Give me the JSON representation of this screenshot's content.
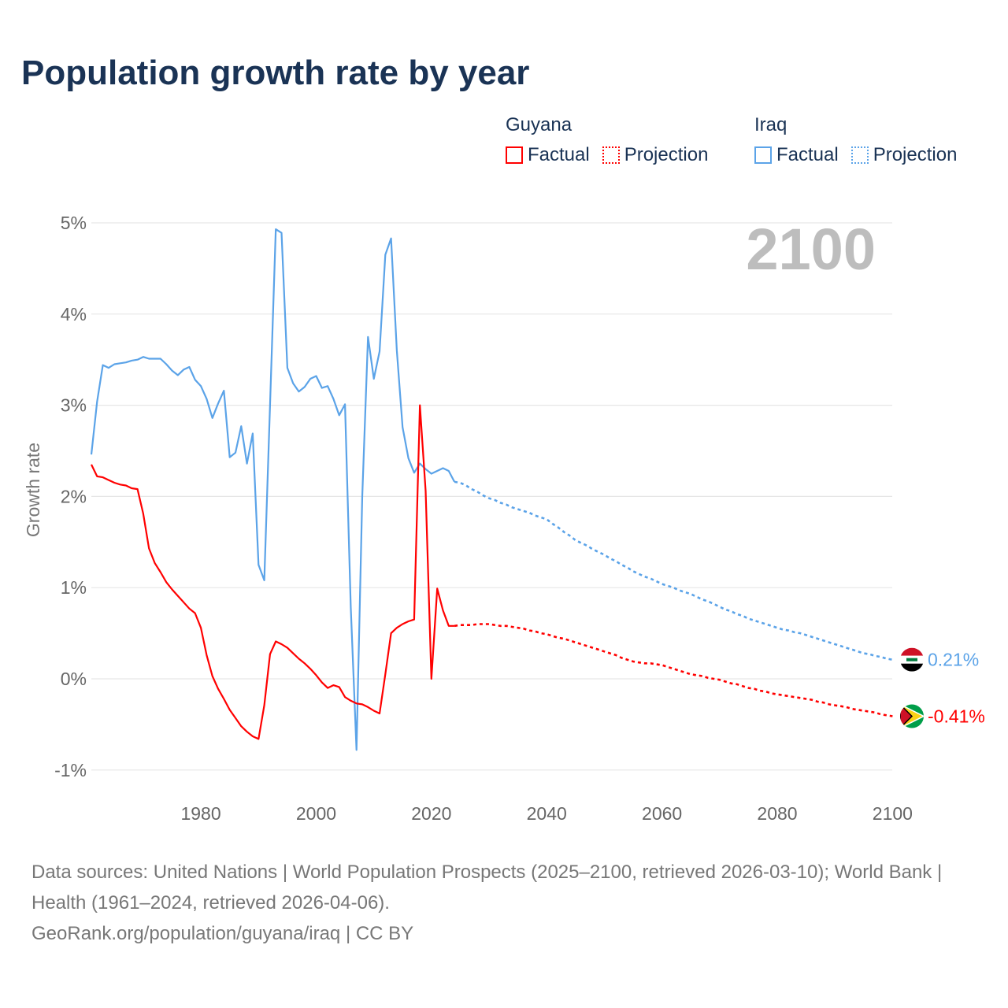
{
  "title": "Population growth rate by year",
  "legend": {
    "groups": [
      {
        "name": "Guyana",
        "factual": "Factual",
        "projection": "Projection",
        "color": "#ff0000"
      },
      {
        "name": "Iraq",
        "factual": "Factual",
        "projection": "Projection",
        "color": "#5ba3e8"
      }
    ]
  },
  "year_label": "2100",
  "footer": {
    "sources": "Data sources: United Nations | World Population Prospects (2025–2100, retrieved 2026-03-10); World Bank | Health (1961–2024, retrieved 2026-04-06).",
    "credit": "GeoRank.org/population/guyana/iraq | CC BY"
  },
  "chart_data": {
    "type": "line",
    "title": "Population growth rate by year",
    "xlabel": "",
    "ylabel": "Growth rate",
    "xlim": [
      1961,
      2100
    ],
    "ylim": [
      -1.2,
      5.1
    ],
    "x_ticks": [
      1980,
      2000,
      2020,
      2040,
      2060,
      2080,
      2100
    ],
    "x_tick_labels": [
      "1980",
      "2000",
      "2020",
      "2040",
      "2060",
      "2080",
      "2100"
    ],
    "y_ticks": [
      -1,
      0,
      1,
      2,
      3,
      4,
      5
    ],
    "y_tick_labels": [
      "-1%",
      "0%",
      "1%",
      "2%",
      "3%",
      "4%",
      "5%"
    ],
    "grid": true,
    "legend_position": "top-right",
    "series": [
      {
        "name": "Iraq",
        "color": "#5ba3e8",
        "end_label": "0.21%",
        "factual_start": 1961,
        "factual": [
          2.46,
          3.04,
          3.44,
          3.41,
          3.45,
          3.46,
          3.47,
          3.49,
          3.5,
          3.53,
          3.51,
          3.51,
          3.51,
          3.45,
          3.38,
          3.33,
          3.39,
          3.42,
          3.28,
          3.21,
          3.07,
          2.86,
          3.02,
          3.16,
          2.43,
          2.48,
          2.77,
          2.36,
          2.69,
          1.25,
          1.08,
          3.0,
          4.93,
          4.89,
          3.41,
          3.24,
          3.15,
          3.2,
          3.29,
          3.32,
          3.19,
          3.21,
          3.07,
          2.89,
          3.01,
          0.79,
          -0.78,
          2.0,
          3.75,
          3.29,
          3.59,
          4.65,
          4.83,
          3.6,
          2.76,
          2.42,
          2.26,
          2.36,
          2.3,
          2.25,
          2.28,
          2.31,
          2.28,
          2.16
        ],
        "projection_start": 2025,
        "projection": [
          2.15,
          2.12,
          2.08,
          2.05,
          2.01,
          1.98,
          1.96,
          1.93,
          1.91,
          1.88,
          1.86,
          1.84,
          1.82,
          1.79,
          1.77,
          1.75,
          1.7,
          1.66,
          1.61,
          1.57,
          1.52,
          1.49,
          1.46,
          1.42,
          1.39,
          1.36,
          1.32,
          1.29,
          1.25,
          1.22,
          1.18,
          1.15,
          1.12,
          1.1,
          1.07,
          1.04,
          1.02,
          1.0,
          0.97,
          0.95,
          0.93,
          0.9,
          0.87,
          0.85,
          0.82,
          0.79,
          0.76,
          0.74,
          0.71,
          0.69,
          0.66,
          0.64,
          0.62,
          0.6,
          0.58,
          0.56,
          0.54,
          0.53,
          0.51,
          0.5,
          0.48,
          0.46,
          0.44,
          0.42,
          0.4,
          0.38,
          0.36,
          0.34,
          0.32,
          0.3,
          0.28,
          0.27,
          0.25,
          0.24,
          0.22,
          0.21
        ]
      },
      {
        "name": "Guyana",
        "color": "#ff0000",
        "end_label": "-0.41%",
        "factual_start": 1961,
        "factual": [
          2.35,
          2.22,
          2.21,
          2.18,
          2.15,
          2.13,
          2.12,
          2.09,
          2.08,
          1.81,
          1.43,
          1.27,
          1.17,
          1.06,
          0.98,
          0.91,
          0.84,
          0.77,
          0.72,
          0.56,
          0.26,
          0.03,
          -0.11,
          -0.22,
          -0.34,
          -0.43,
          -0.52,
          -0.58,
          -0.63,
          -0.66,
          -0.29,
          0.27,
          0.41,
          0.38,
          0.34,
          0.28,
          0.22,
          0.17,
          0.11,
          0.04,
          -0.04,
          -0.1,
          -0.07,
          -0.09,
          -0.2,
          -0.24,
          -0.27,
          -0.28,
          -0.31,
          -0.35,
          -0.38,
          0.05,
          0.5,
          0.56,
          0.6,
          0.63,
          0.65,
          3.0,
          2.06,
          0.0,
          0.99,
          0.75,
          0.58,
          0.58
        ],
        "projection_start": 2025,
        "projection": [
          0.59,
          0.59,
          0.59,
          0.6,
          0.6,
          0.6,
          0.59,
          0.58,
          0.58,
          0.57,
          0.56,
          0.55,
          0.53,
          0.52,
          0.5,
          0.49,
          0.47,
          0.45,
          0.44,
          0.42,
          0.4,
          0.38,
          0.36,
          0.34,
          0.32,
          0.3,
          0.28,
          0.26,
          0.23,
          0.21,
          0.19,
          0.18,
          0.17,
          0.17,
          0.16,
          0.15,
          0.13,
          0.11,
          0.09,
          0.07,
          0.05,
          0.04,
          0.03,
          0.01,
          0.0,
          -0.01,
          -0.03,
          -0.05,
          -0.06,
          -0.08,
          -0.1,
          -0.11,
          -0.13,
          -0.14,
          -0.16,
          -0.17,
          -0.18,
          -0.19,
          -0.2,
          -0.21,
          -0.22,
          -0.23,
          -0.25,
          -0.26,
          -0.28,
          -0.29,
          -0.3,
          -0.31,
          -0.33,
          -0.34,
          -0.35,
          -0.36,
          -0.37,
          -0.39,
          -0.4,
          -0.41
        ]
      }
    ]
  }
}
